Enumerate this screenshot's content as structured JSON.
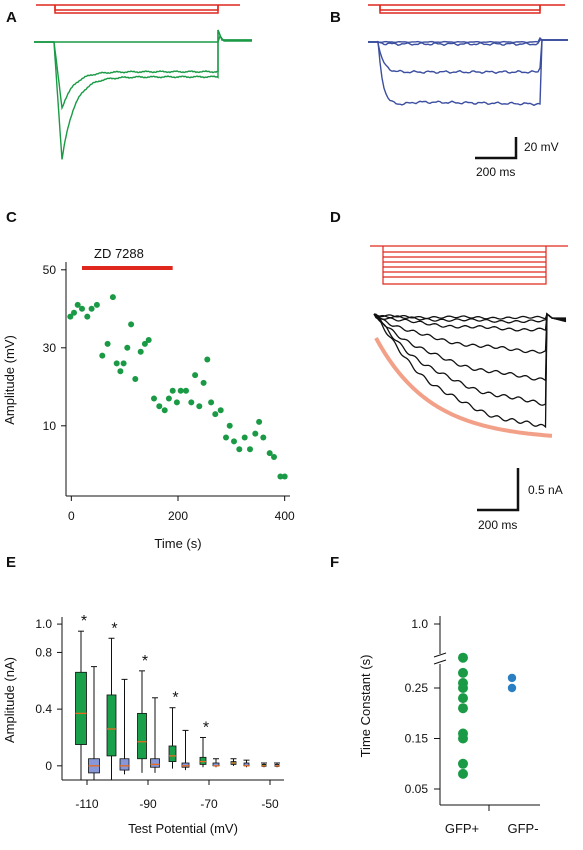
{
  "panels": {
    "A": "A",
    "B": "B",
    "C": "C",
    "D": "D",
    "E": "E",
    "F": "F"
  },
  "colors": {
    "green": "#1a9a45",
    "blue": "#3b4ea0",
    "red": "#e0271e",
    "salmon": "#f2a088",
    "box_green": "#1aa04b",
    "box_blue": "#8797d8",
    "median": "#e86a1e",
    "black": "#111111"
  },
  "scalebar_ab": {
    "v": "20 mV",
    "h": "200 ms"
  },
  "scalebar_d": {
    "v": "0.5 nA",
    "h": "200 ms"
  },
  "chart_data": [
    {
      "panel": "A",
      "type": "line",
      "title": "",
      "xlabel": "",
      "ylabel": "",
      "series": []
    },
    {
      "panel": "C",
      "type": "scatter",
      "title": "",
      "xlabel": "Time (s)",
      "ylabel": "Amplitude (mV)",
      "xlim": [
        -10,
        410
      ],
      "ylim": [
        -8,
        52
      ],
      "xticks": [
        "0",
        "200",
        "400"
      ],
      "yticks": [
        "10",
        "30",
        "50"
      ],
      "bar_label": "ZD 7288",
      "bar_range": [
        20,
        190
      ],
      "x": [
        -2,
        5,
        12,
        20,
        30,
        38,
        48,
        58,
        68,
        78,
        85,
        92,
        98,
        105,
        112,
        120,
        130,
        138,
        145,
        155,
        165,
        175,
        183,
        190,
        198,
        205,
        215,
        225,
        232,
        240,
        248,
        255,
        262,
        270,
        280,
        290,
        297,
        305,
        315,
        325,
        335,
        345,
        352,
        360,
        372,
        380,
        392,
        400
      ],
      "y": [
        38,
        39,
        41,
        40,
        38,
        40,
        41,
        28,
        31,
        43,
        26,
        24,
        26,
        30,
        36,
        22,
        29,
        31,
        32,
        17,
        15,
        14,
        17,
        19,
        16,
        19,
        19,
        16,
        23,
        15,
        21,
        27,
        16,
        13,
        14,
        7,
        10,
        6,
        4,
        7,
        4,
        8,
        11,
        7,
        3,
        2,
        -3,
        -3
      ]
    },
    {
      "panel": "D",
      "type": "line",
      "title": "",
      "xlabel": "",
      "ylabel": "",
      "series": []
    },
    {
      "panel": "E",
      "type": "box",
      "title": "",
      "xlabel": "Test Potential (mV)",
      "ylabel": "Amplitude (nA)",
      "ylim": [
        -0.1,
        1.05
      ],
      "xticks": [
        "-110",
        "-90",
        "-70",
        "-50"
      ],
      "yticks": [
        "0",
        "0.4",
        "0.8",
        "1.0"
      ],
      "categories": [
        "-110",
        "-100",
        "-90",
        "-80",
        "-70",
        "-60",
        "-50"
      ],
      "significant": [
        true,
        true,
        true,
        true,
        true,
        false,
        false
      ],
      "series": [
        {
          "group": "GFP+",
          "boxes": [
            {
              "min": -0.1,
              "q1": 0.15,
              "med": 0.37,
              "q3": 0.66,
              "max": 0.95
            },
            {
              "min": -0.1,
              "q1": 0.07,
              "med": 0.26,
              "q3": 0.5,
              "max": 0.9
            },
            {
              "min": -0.05,
              "q1": 0.05,
              "med": 0.17,
              "q3": 0.37,
              "max": 0.67
            },
            {
              "min": -0.02,
              "q1": 0.03,
              "med": 0.07,
              "q3": 0.14,
              "max": 0.41
            },
            {
              "min": -0.01,
              "q1": 0.01,
              "med": 0.03,
              "q3": 0.06,
              "max": 0.2
            },
            {
              "min": 0.0,
              "q1": 0.01,
              "med": 0.02,
              "q3": 0.03,
              "max": 0.05
            },
            {
              "min": -0.01,
              "q1": 0.0,
              "med": 0.0,
              "q3": 0.01,
              "max": 0.02
            }
          ]
        },
        {
          "group": "GFP-",
          "boxes": [
            {
              "min": -0.1,
              "q1": -0.05,
              "med": 0.0,
              "q3": 0.05,
              "max": 0.7
            },
            {
              "min": -0.06,
              "q1": -0.03,
              "med": 0.0,
              "q3": 0.05,
              "max": 0.61
            },
            {
              "min": -0.05,
              "q1": -0.01,
              "med": 0.01,
              "q3": 0.05,
              "max": 0.48
            },
            {
              "min": -0.03,
              "q1": -0.01,
              "med": 0.0,
              "q3": 0.02,
              "max": 0.25
            },
            {
              "min": -0.01,
              "q1": 0.0,
              "med": 0.0,
              "q3": 0.02,
              "max": 0.05
            },
            {
              "min": -0.01,
              "q1": 0.0,
              "med": 0.0,
              "q3": 0.02,
              "max": 0.04
            },
            {
              "min": -0.01,
              "q1": 0.0,
              "med": 0.0,
              "q3": 0.01,
              "max": 0.02
            }
          ]
        }
      ]
    },
    {
      "panel": "F",
      "type": "scatter",
      "title": "",
      "xlabel": "",
      "ylabel": "Time Constant (s)",
      "categories": [
        "GFP+",
        "GFP-"
      ],
      "yticks": [
        "1.0",
        "0.25",
        "0.15",
        "0.05"
      ],
      "series": [
        {
          "name": "GFP+",
          "values": [
            0.08,
            0.1,
            0.15,
            0.16,
            0.21,
            0.23,
            0.25,
            0.26,
            0.28,
            0.31
          ]
        },
        {
          "name": "GFP-",
          "values": [
            0.25,
            0.27
          ]
        }
      ]
    }
  ]
}
